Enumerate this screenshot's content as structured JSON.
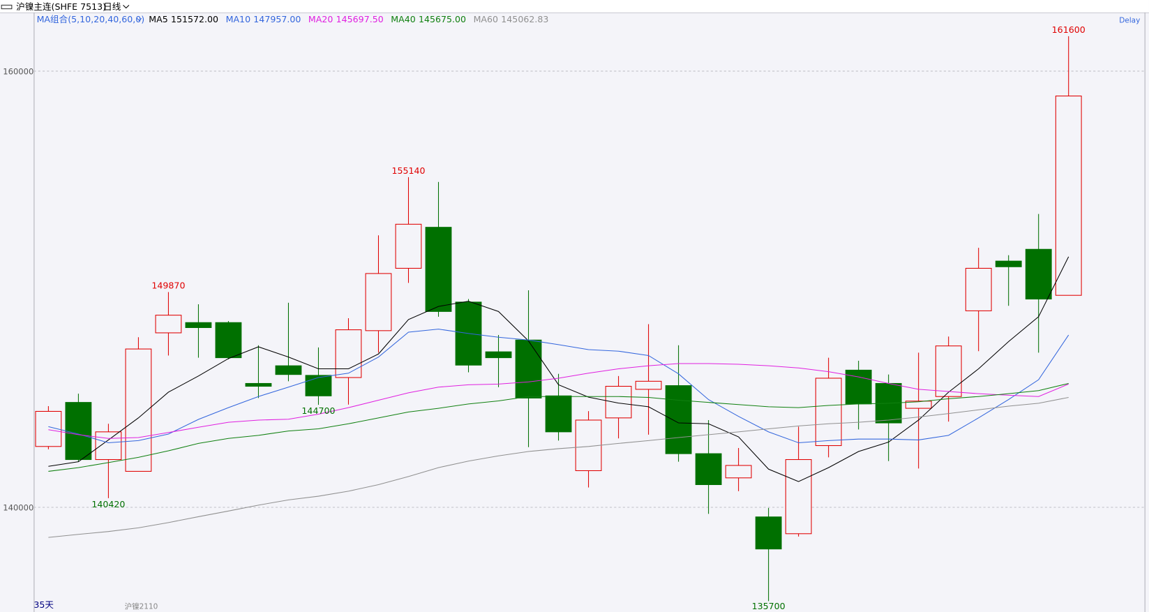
{
  "chart_data": {
    "type": "candlestick",
    "title": "沪镍主连(SHFE 7513)",
    "period": "日线",
    "ma_group": "MA组合(5,10,20,40,60,0)",
    "delay": "Delay",
    "day_count": "35天",
    "contract": "沪镍2110",
    "ylim": [
      135200,
      162690
    ],
    "yticks": [
      140000,
      160000
    ],
    "grid": true,
    "up_color": "#e00000",
    "down_color": "#007000",
    "open": [
      142790,
      144810,
      142190,
      141650,
      148000,
      148470,
      148470,
      145680,
      146490,
      146050,
      145950,
      148100,
      150960,
      152840,
      149410,
      147130,
      147670,
      145110,
      141680,
      144100,
      145410,
      145580,
      142460,
      141350,
      139560,
      138790,
      142830,
      146290,
      145680,
      144540,
      145080,
      149010,
      151290,
      151830,
      149720
    ],
    "high": [
      144640,
      145210,
      143830,
      147800,
      149870,
      149310,
      148540,
      147430,
      149380,
      147330,
      148670,
      152470,
      155140,
      154920,
      149550,
      147900,
      149950,
      146120,
      144410,
      146020,
      148400,
      147430,
      144000,
      142720,
      139970,
      143700,
      146860,
      146720,
      146090,
      147090,
      147830,
      151900,
      151560,
      153450,
      161600
    ],
    "low": [
      142660,
      142090,
      140420,
      141650,
      146960,
      146860,
      146790,
      145010,
      145780,
      144700,
      144710,
      147090,
      150290,
      148740,
      146190,
      145510,
      142760,
      143060,
      140910,
      143160,
      143330,
      142090,
      139700,
      140740,
      135700,
      138660,
      142290,
      143570,
      142120,
      141780,
      143930,
      147160,
      149240,
      147090,
      149720
    ],
    "close": [
      144400,
      142190,
      143460,
      147260,
      148810,
      148240,
      146860,
      145550,
      146090,
      145110,
      148140,
      150720,
      152980,
      148980,
      146520,
      146860,
      145010,
      143460,
      144000,
      145550,
      145780,
      142460,
      141040,
      141920,
      138090,
      142190,
      145920,
      144740,
      143870,
      144870,
      147400,
      150960,
      151030,
      149550,
      158860
    ],
    "series": [
      {
        "name": "MA5",
        "last_label": "151572.00",
        "color": "#000000",
        "values": [
          141880,
          142090,
          143090,
          144100,
          145280,
          146020,
          146820,
          147360,
          146890,
          146350,
          146350,
          147030,
          148610,
          149210,
          149450,
          148980,
          147630,
          145620,
          145050,
          144780,
          144610,
          143870,
          143830,
          143230,
          141750,
          141180,
          141820,
          142560,
          142990,
          144000,
          145280,
          146350,
          147600,
          148740,
          151490
        ]
      },
      {
        "name": "MA10",
        "last_label": "147957.00",
        "color": "#3366dd",
        "values": [
          143700,
          143360,
          142960,
          143060,
          143360,
          144030,
          144570,
          145080,
          145510,
          145950,
          146150,
          146890,
          148030,
          148170,
          147970,
          147800,
          147670,
          147460,
          147230,
          147160,
          146960,
          146120,
          144940,
          144170,
          143460,
          142960,
          143060,
          143130,
          143130,
          143090,
          143300,
          144100,
          144940,
          145850,
          147900
        ]
      },
      {
        "name": "MA20",
        "last_label": "145697.50",
        "color": "#e020e0",
        "values": [
          143560,
          143330,
          143160,
          143200,
          143430,
          143670,
          143900,
          144000,
          144040,
          144270,
          144570,
          144910,
          145250,
          145510,
          145620,
          145650,
          145750,
          145920,
          146150,
          146350,
          146490,
          146590,
          146590,
          146560,
          146490,
          146390,
          146220,
          145980,
          145680,
          145410,
          145310,
          145210,
          145140,
          145080,
          145650
        ]
      },
      {
        "name": "MA40",
        "last_label": "145675.00",
        "color": "#108010",
        "values": [
          141650,
          141820,
          142050,
          142290,
          142590,
          142930,
          143160,
          143300,
          143500,
          143600,
          143830,
          144100,
          144370,
          144540,
          144740,
          144880,
          145080,
          145080,
          145080,
          145080,
          145040,
          144910,
          144810,
          144710,
          144610,
          144570,
          144670,
          144740,
          144770,
          144840,
          144980,
          145080,
          145210,
          145350,
          145680
        ]
      },
      {
        "name": "MA60",
        "last_label": "145062.83",
        "color": "#909090",
        "values": [
          138620,
          138760,
          138890,
          139060,
          139300,
          139570,
          139830,
          140100,
          140340,
          140510,
          140740,
          141040,
          141410,
          141820,
          142120,
          142360,
          142560,
          142690,
          142790,
          142930,
          143060,
          143200,
          143330,
          143460,
          143600,
          143730,
          143830,
          143900,
          144000,
          144140,
          144300,
          144470,
          144640,
          144770,
          145040
        ]
      }
    ]
  }
}
